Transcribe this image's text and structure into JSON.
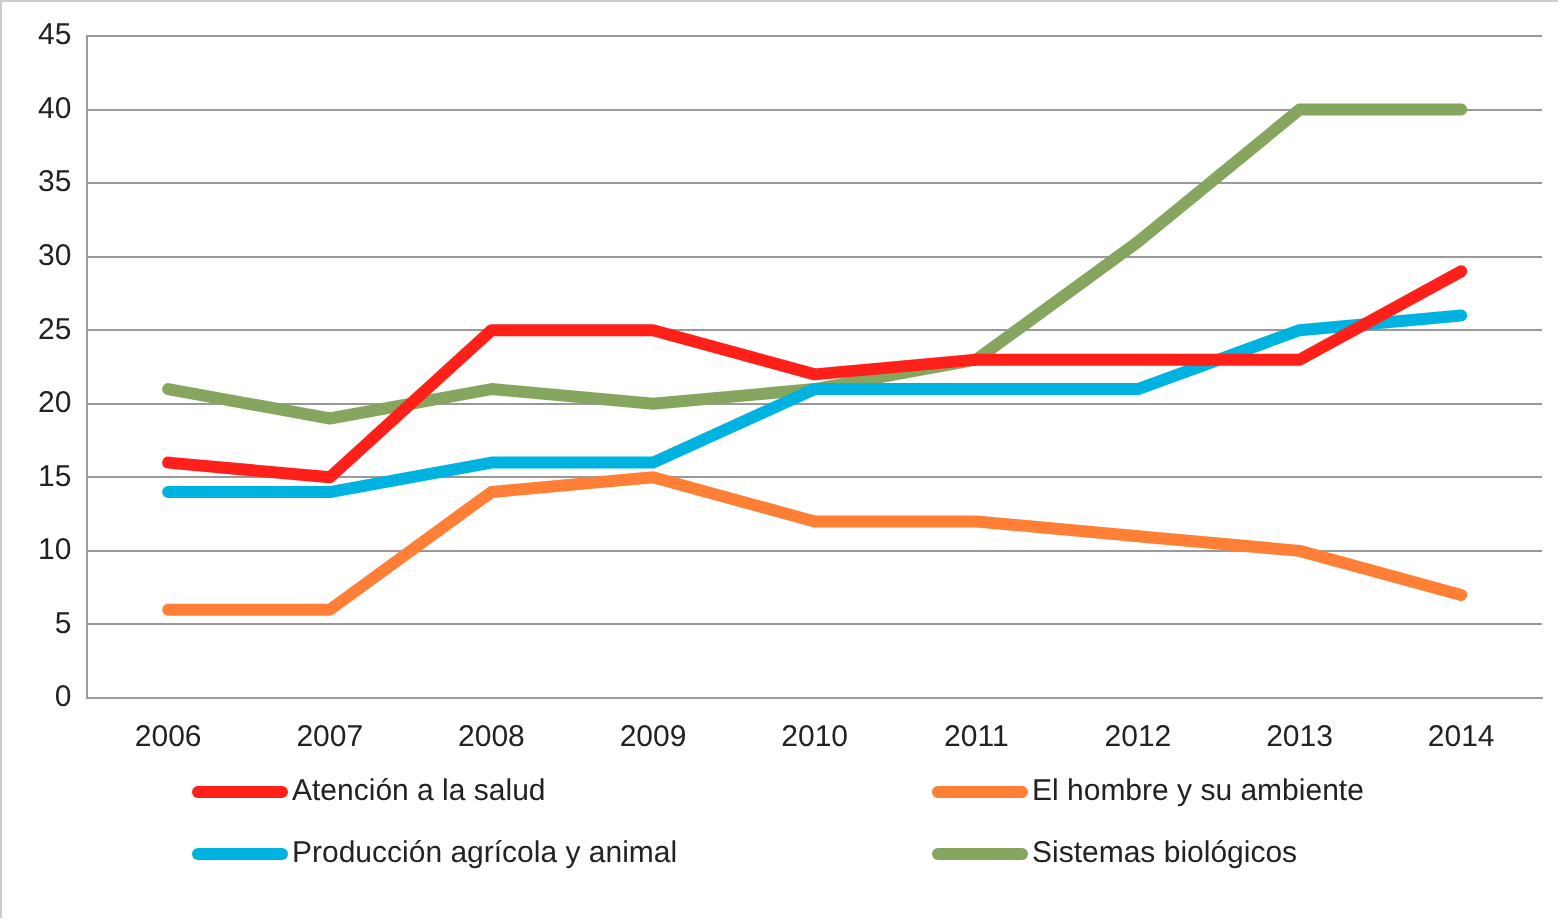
{
  "chart_data": {
    "type": "line",
    "categories": [
      "2006",
      "2007",
      "2008",
      "2009",
      "2010",
      "2011",
      "2012",
      "2013",
      "2014"
    ],
    "series": [
      {
        "name": "Atención a la salud",
        "color": "#ff2019",
        "values": [
          16,
          15,
          25,
          25,
          22,
          23,
          23,
          23,
          29
        ]
      },
      {
        "name": "El hombre y su ambiente",
        "color": "#ff7f36",
        "values": [
          6,
          6,
          14,
          15,
          12,
          12,
          11,
          10,
          7
        ]
      },
      {
        "name": "Producción agrícola y animal",
        "color": "#00b2e0",
        "values": [
          14,
          14,
          16,
          16,
          21,
          21,
          21,
          25,
          26
        ]
      },
      {
        "name": "Sistemas biológicos",
        "color": "#86a660",
        "values": [
          21,
          19,
          21,
          20,
          21,
          23,
          31,
          40,
          40
        ]
      }
    ],
    "ylim": [
      0,
      45
    ],
    "yticks": [
      0,
      5,
      10,
      15,
      20,
      25,
      30,
      35,
      40,
      45
    ],
    "grid": "y",
    "legend": "bottom",
    "marker": "none",
    "line_style": "solid"
  }
}
